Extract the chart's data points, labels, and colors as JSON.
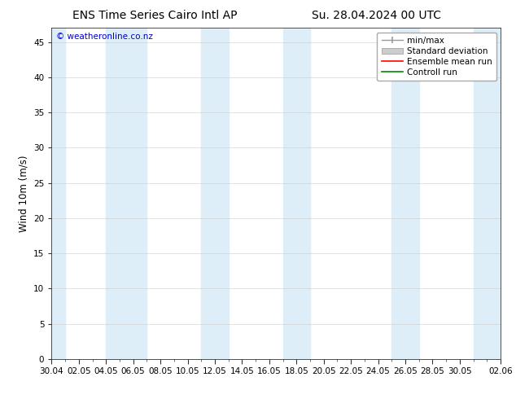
{
  "title_left": "ENS Time Series Cairo Intl AP",
  "title_right": "Su. 28.04.2024 00 UTC",
  "ylabel": "Wind 10m (m/s)",
  "watermark": "© weatheronline.co.nz",
  "bg_color": "#ffffff",
  "plot_bg_color": "#ffffff",
  "shaded_band_color": "#ddeef8",
  "ylim": [
    0,
    47
  ],
  "yticks": [
    0,
    5,
    10,
    15,
    20,
    25,
    30,
    35,
    40,
    45
  ],
  "x_start_num": 0,
  "x_end_num": 33,
  "x_tick_labels": [
    "30.04",
    "02.05",
    "04.05",
    "06.05",
    "08.05",
    "10.05",
    "12.05",
    "14.05",
    "16.05",
    "18.05",
    "20.05",
    "22.05",
    "24.05",
    "26.05",
    "28.05",
    "30.05",
    "02.06"
  ],
  "x_tick_positions": [
    0,
    2,
    4,
    6,
    8,
    10,
    12,
    14,
    16,
    18,
    20,
    22,
    24,
    26,
    28,
    30,
    33
  ],
  "shaded_bands": [
    [
      0,
      1
    ],
    [
      4,
      7
    ],
    [
      11,
      13
    ],
    [
      17,
      19
    ],
    [
      25,
      27
    ],
    [
      31,
      33
    ]
  ],
  "legend_entries": [
    {
      "label": "min/max",
      "color": "#aaaaaa",
      "lw": 1.2
    },
    {
      "label": "Standard deviation",
      "color": "#cccccc",
      "lw": 6
    },
    {
      "label": "Ensemble mean run",
      "color": "#ff0000",
      "lw": 1.2
    },
    {
      "label": "Controll run",
      "color": "#008800",
      "lw": 1.2
    }
  ],
  "title_fontsize": 10,
  "tick_fontsize": 7.5,
  "ylabel_fontsize": 8.5,
  "watermark_color": "#0000cc",
  "watermark_fontsize": 7.5,
  "legend_fontsize": 7.5
}
